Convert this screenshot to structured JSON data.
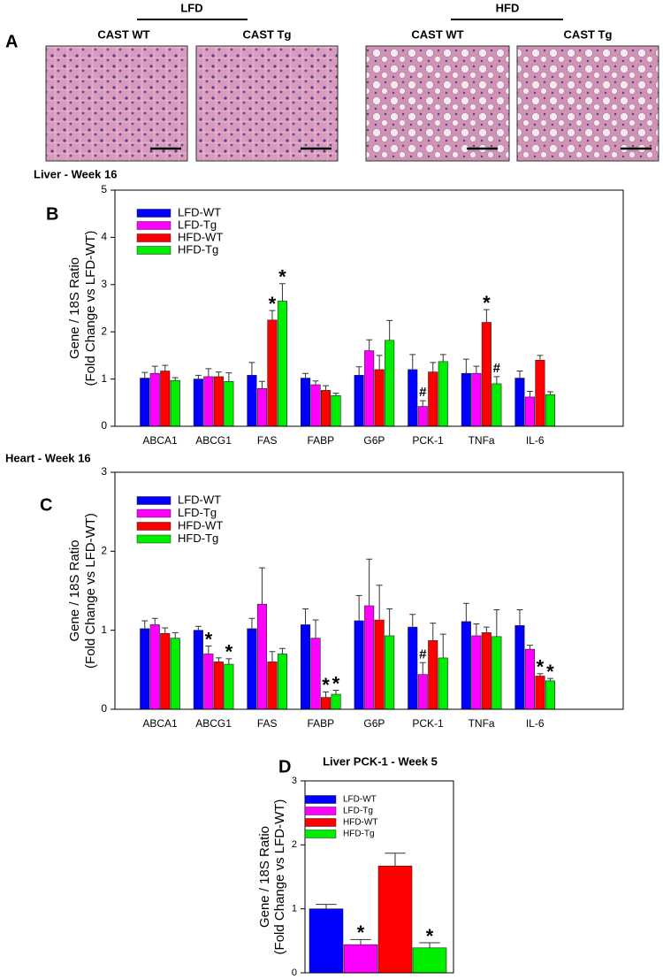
{
  "panel_a": {
    "label": "A",
    "groups": [
      {
        "label": "LFD",
        "images": [
          {
            "label": "CAST WT"
          },
          {
            "label": "CAST Tg"
          }
        ]
      },
      {
        "label": "HFD",
        "images": [
          {
            "label": "CAST WT"
          },
          {
            "label": "CAST Tg"
          }
        ]
      }
    ]
  },
  "chart_data": [
    {
      "type": "bar",
      "panel": "B",
      "title": "Liver - Week 16",
      "y_label": [
        "Gene / 18S Ratio",
        "(Fold Change vs LFD-WT)"
      ],
      "categories": [
        "ABCA1",
        "ABCG1",
        "FAS",
        "FABP",
        "G6P",
        "PCK-1",
        "TNFa",
        "IL-6"
      ],
      "ylim": [
        0,
        5
      ],
      "yticks": [
        0,
        1,
        2,
        3,
        4,
        5
      ],
      "series": [
        {
          "name": "LFD-WT",
          "color": "#0000ff",
          "values": [
            1.02,
            1.0,
            1.08,
            1.02,
            1.08,
            1.2,
            1.12,
            1.02
          ],
          "errors": [
            0.12,
            0.08,
            0.27,
            0.1,
            0.18,
            0.32,
            0.3,
            0.15
          ],
          "markers": [
            null,
            null,
            null,
            null,
            null,
            null,
            null,
            null
          ]
        },
        {
          "name": "LFD-Tg",
          "color": "#ff00ff",
          "values": [
            1.12,
            1.05,
            0.8,
            0.88,
            1.6,
            0.42,
            1.12,
            0.62
          ],
          "errors": [
            0.15,
            0.17,
            0.15,
            0.08,
            0.23,
            0.12,
            0.15,
            0.12
          ],
          "markers": [
            null,
            null,
            null,
            null,
            null,
            "#",
            null,
            null
          ]
        },
        {
          "name": "HFD-WT",
          "color": "#ff0000",
          "values": [
            1.17,
            1.05,
            2.25,
            0.76,
            1.2,
            1.15,
            2.2,
            1.4
          ],
          "errors": [
            0.12,
            0.1,
            0.2,
            0.1,
            0.3,
            0.2,
            0.27,
            0.1
          ],
          "markers": [
            null,
            null,
            "*",
            null,
            null,
            null,
            "*",
            null
          ]
        },
        {
          "name": "HFD-Tg",
          "color": "#00ee00",
          "values": [
            0.97,
            0.95,
            2.65,
            0.65,
            1.82,
            1.37,
            0.9,
            0.67
          ],
          "errors": [
            0.06,
            0.18,
            0.37,
            0.05,
            0.42,
            0.15,
            0.15,
            0.06
          ],
          "markers": [
            null,
            null,
            "*",
            null,
            null,
            null,
            "#",
            null
          ]
        }
      ]
    },
    {
      "type": "bar",
      "panel": "C",
      "title": "Heart - Week 16",
      "y_label": [
        "Gene / 18S Ratio",
        "(Fold Change vs LFD-WT)"
      ],
      "categories": [
        "ABCA1",
        "ABCG1",
        "FAS",
        "FABP",
        "G6P",
        "PCK-1",
        "TNFa",
        "IL-6"
      ],
      "ylim": [
        0,
        3
      ],
      "yticks": [
        0,
        1,
        2,
        3
      ],
      "series": [
        {
          "name": "LFD-WT",
          "color": "#0000ff",
          "values": [
            1.02,
            1.0,
            1.02,
            1.07,
            1.12,
            1.04,
            1.11,
            1.06
          ],
          "errors": [
            0.1,
            0.05,
            0.13,
            0.2,
            0.32,
            0.16,
            0.23,
            0.2
          ],
          "markers": [
            null,
            null,
            null,
            null,
            null,
            null,
            null,
            null
          ]
        },
        {
          "name": "LFD-Tg",
          "color": "#ff00ff",
          "values": [
            1.07,
            0.7,
            1.33,
            0.9,
            1.31,
            0.44,
            0.93,
            0.76
          ],
          "errors": [
            0.08,
            0.1,
            0.46,
            0.23,
            0.59,
            0.15,
            0.15,
            0.05
          ],
          "markers": [
            null,
            "*",
            null,
            null,
            null,
            "#",
            null,
            null
          ]
        },
        {
          "name": "HFD-WT",
          "color": "#ff0000",
          "values": [
            0.96,
            0.6,
            0.6,
            0.15,
            1.13,
            0.87,
            0.97,
            0.42
          ],
          "errors": [
            0.07,
            0.05,
            0.13,
            0.07,
            0.44,
            0.22,
            0.07,
            0.03
          ],
          "markers": [
            null,
            null,
            null,
            "*",
            null,
            null,
            null,
            "*"
          ]
        },
        {
          "name": "HFD-Tg",
          "color": "#00ee00",
          "values": [
            0.9,
            0.57,
            0.7,
            0.19,
            0.93,
            0.65,
            0.92,
            0.36
          ],
          "errors": [
            0.07,
            0.07,
            0.07,
            0.05,
            0.34,
            0.3,
            0.34,
            0.03
          ],
          "markers": [
            null,
            "*",
            null,
            "*",
            null,
            null,
            null,
            "*"
          ]
        }
      ]
    },
    {
      "type": "bar",
      "panel": "D",
      "title": "Liver PCK-1 - Week 5",
      "y_label": [
        "Gene / 18S Ratio",
        "(Fold Change vs LFD-WT)"
      ],
      "categories": [
        null
      ],
      "ylim": [
        0,
        3
      ],
      "yticks": [
        0,
        1,
        2,
        3
      ],
      "series": [
        {
          "name": "LFD-WT",
          "color": "#0000ff",
          "values": [
            1.0
          ],
          "errors": [
            0.07
          ],
          "markers": [
            null
          ]
        },
        {
          "name": "LFD-Tg",
          "color": "#ff00ff",
          "values": [
            0.44
          ],
          "errors": [
            0.08
          ],
          "markers": [
            "*"
          ]
        },
        {
          "name": "HFD-WT",
          "color": "#ff0000",
          "values": [
            1.67
          ],
          "errors": [
            0.2
          ],
          "markers": [
            null
          ]
        },
        {
          "name": "HFD-Tg",
          "color": "#00ee00",
          "values": [
            0.39
          ],
          "errors": [
            0.08
          ],
          "markers": [
            "*"
          ]
        }
      ]
    }
  ]
}
